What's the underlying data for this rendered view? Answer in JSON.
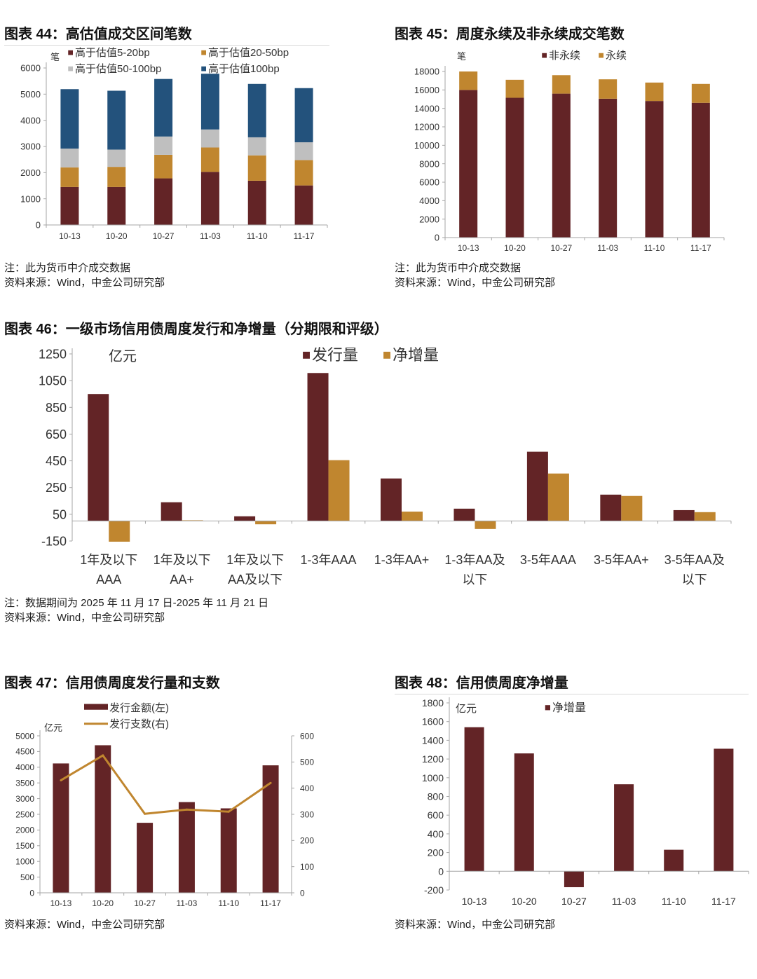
{
  "colors": {
    "dark_red": "#632426",
    "orange": "#C0862F",
    "gray": "#BFBFBF",
    "blue": "#23527C",
    "axis": "#A6A6A6"
  },
  "chart_data": [
    {
      "type": "bar",
      "stacked": true,
      "title": "图表 44：高估值成交区间笔数",
      "ylabel": "笔",
      "ylim": [
        0,
        6000
      ],
      "yticks": [
        0,
        1000,
        2000,
        3000,
        4000,
        5000,
        6000
      ],
      "categories": [
        "10-13",
        "10-20",
        "10-27",
        "11-03",
        "11-10",
        "11-17"
      ],
      "legend_placement": "top",
      "series": [
        {
          "name": "高于估值5-20bp",
          "color": "#632426",
          "values": [
            1450,
            1450,
            1780,
            2030,
            1690,
            1510
          ]
        },
        {
          "name": "高于估值20-50bp",
          "color": "#C0862F",
          "values": [
            750,
            770,
            900,
            930,
            970,
            970
          ]
        },
        {
          "name": "高于估值50-100bp",
          "color": "#BFBFBF",
          "values": [
            720,
            660,
            700,
            690,
            690,
            680
          ]
        },
        {
          "name": "高于估值100bp",
          "color": "#23527C",
          "values": [
            2270,
            2250,
            2200,
            2130,
            2040,
            2070
          ]
        }
      ],
      "note": "注：此为货币中介成交数据",
      "source": "资料来源：Wind，中金公司研究部"
    },
    {
      "type": "bar",
      "stacked": true,
      "title": "图表 45：周度永续及非永续成交笔数",
      "ylabel": "笔",
      "ylim": [
        0,
        18000
      ],
      "yticks": [
        0,
        2000,
        4000,
        6000,
        8000,
        10000,
        12000,
        14000,
        16000,
        18000
      ],
      "categories": [
        "10-13",
        "10-20",
        "10-27",
        "11-03",
        "11-10",
        "11-17"
      ],
      "legend_placement": "top",
      "series": [
        {
          "name": "非永续",
          "color": "#632426",
          "values": [
            16000,
            15150,
            15600,
            15050,
            14800,
            14600
          ]
        },
        {
          "name": "永续",
          "color": "#C0862F",
          "values": [
            2000,
            1950,
            2000,
            2100,
            2000,
            2050
          ]
        }
      ],
      "note": "注：此为货币中介成交数据",
      "source": "资料来源：Wind，中金公司研究部"
    },
    {
      "type": "bar",
      "stacked": false,
      "title": "图表 46：一级市场信用债周度发行和净增量（分期限和评级）",
      "ylabel": "亿元",
      "ylim": [
        -150,
        1250
      ],
      "yticks": [
        -150,
        50,
        250,
        450,
        650,
        850,
        1050,
        1250
      ],
      "categories": [
        "1年及以下\nAAA",
        "1年及以下\nAA+",
        "1年及以下\nAA及以下",
        "1-3年AAA",
        "1-3年AA+",
        "1-3年AA及\n以下",
        "3-5年AAA",
        "3-5年AA+",
        "3-5年AA及\n以下"
      ],
      "legend_placement": "top",
      "series": [
        {
          "name": "发行量",
          "color": "#632426",
          "values": [
            950,
            140,
            35,
            1107,
            318,
            92,
            518,
            197,
            81
          ]
        },
        {
          "name": "净增量",
          "color": "#C0862F",
          "values": [
            -155,
            5,
            -25,
            455,
            70,
            -60,
            355,
            187,
            66
          ]
        }
      ],
      "note": "注：数据期间为 2025 年 11 月 17 日-2025 年 11 月 21 日",
      "source": "资料来源：Wind，中金公司研究部"
    },
    {
      "type": "bar+line",
      "title": "图表 47：信用债周度发行量和支数",
      "ylabel": "亿元",
      "ylim": [
        0,
        5000
      ],
      "yticks": [
        0,
        500,
        1000,
        1500,
        2000,
        2500,
        3000,
        3500,
        4000,
        4500,
        5000
      ],
      "y2lim": [
        0,
        600
      ],
      "y2ticks": [
        0,
        100,
        200,
        300,
        400,
        500,
        600
      ],
      "categories": [
        "10-13",
        "10-20",
        "10-27",
        "11-03",
        "11-10",
        "11-17"
      ],
      "legend_placement": "top",
      "series": [
        {
          "name": "发行金额(左)",
          "color": "#632426",
          "kind": "bar",
          "values": [
            4120,
            4700,
            2230,
            2890,
            2690,
            4060
          ]
        },
        {
          "name": "发行支数(右)",
          "color": "#C0862F",
          "kind": "line",
          "axis": "right",
          "values": [
            430,
            525,
            302,
            318,
            310,
            420
          ]
        }
      ],
      "source": "资料来源：Wind，中金公司研究部"
    },
    {
      "type": "bar",
      "stacked": false,
      "title": "图表 48：信用债周度净增量",
      "ylabel": "亿元",
      "ylim": [
        -200,
        1800
      ],
      "yticks": [
        -200,
        0,
        200,
        400,
        600,
        800,
        1000,
        1200,
        1400,
        1600,
        1800
      ],
      "categories": [
        "10-13",
        "10-20",
        "10-27",
        "11-03",
        "11-10",
        "11-17"
      ],
      "legend_placement": "top",
      "series": [
        {
          "name": "净增量",
          "color": "#632426",
          "values": [
            1540,
            1260,
            -170,
            930,
            230,
            1310
          ]
        }
      ],
      "source": "资料来源：Wind，中金公司研究部"
    }
  ]
}
